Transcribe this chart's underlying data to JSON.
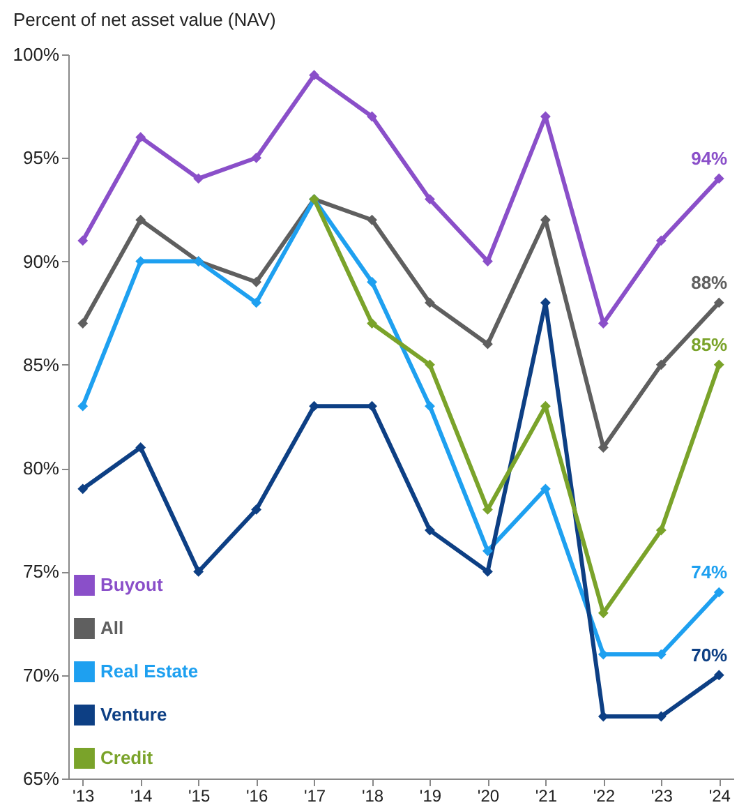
{
  "chart_data": {
    "type": "line",
    "ylabel": "Percent of net asset value (NAV)",
    "categories": [
      "'13",
      "'14",
      "'15",
      "'16",
      "'17",
      "'18",
      "'19",
      "'20",
      "'21",
      "'22",
      "'23",
      "'24"
    ],
    "series": [
      {
        "name": "Buyout",
        "color": "#8a4fc9",
        "values": [
          91,
          96,
          94,
          95,
          99,
          97,
          93,
          90,
          97,
          87,
          91,
          94
        ],
        "value_labels": [
          null,
          null,
          null,
          null,
          null,
          null,
          null,
          null,
          null,
          null,
          null,
          "94%"
        ]
      },
      {
        "name": "All",
        "color": "#5f5f5f",
        "values": [
          87,
          92,
          90,
          89,
          93,
          92,
          88,
          86,
          92,
          81,
          85,
          88
        ],
        "value_labels": [
          null,
          null,
          null,
          null,
          null,
          null,
          null,
          null,
          null,
          null,
          null,
          "88%"
        ]
      },
      {
        "name": "Real Estate",
        "color": "#1ea0f0",
        "values": [
          83,
          90,
          90,
          88,
          93,
          89,
          83,
          76,
          79,
          71,
          71,
          74
        ],
        "value_labels": [
          null,
          null,
          null,
          null,
          null,
          null,
          null,
          null,
          null,
          null,
          null,
          "74%"
        ]
      },
      {
        "name": "Venture",
        "color": "#0d3f84",
        "values": [
          79,
          81,
          75,
          78,
          83,
          83,
          77,
          75,
          88,
          68,
          68,
          70
        ],
        "value_labels": [
          null,
          null,
          null,
          null,
          null,
          null,
          null,
          null,
          null,
          null,
          null,
          "70%"
        ]
      },
      {
        "name": "Credit",
        "color": "#7aa32a",
        "values": [
          null,
          null,
          null,
          null,
          93,
          87,
          85,
          78,
          83,
          73,
          77,
          85
        ],
        "value_labels": [
          null,
          null,
          null,
          null,
          null,
          null,
          null,
          null,
          null,
          null,
          null,
          "85%"
        ]
      }
    ],
    "ylim": [
      65,
      100
    ],
    "yticks": [
      {
        "value": 65,
        "label": "65%"
      },
      {
        "value": 70,
        "label": "70%"
      },
      {
        "value": 75,
        "label": "75%"
      },
      {
        "value": 80,
        "label": "80%"
      },
      {
        "value": 85,
        "label": "85%"
      },
      {
        "value": 90,
        "label": "90%"
      },
      {
        "value": 95,
        "label": "95%"
      },
      {
        "value": 100,
        "label": "100%"
      }
    ],
    "grid": false,
    "legend": "bottom left",
    "marker": "diamond",
    "line_style": "solid"
  }
}
